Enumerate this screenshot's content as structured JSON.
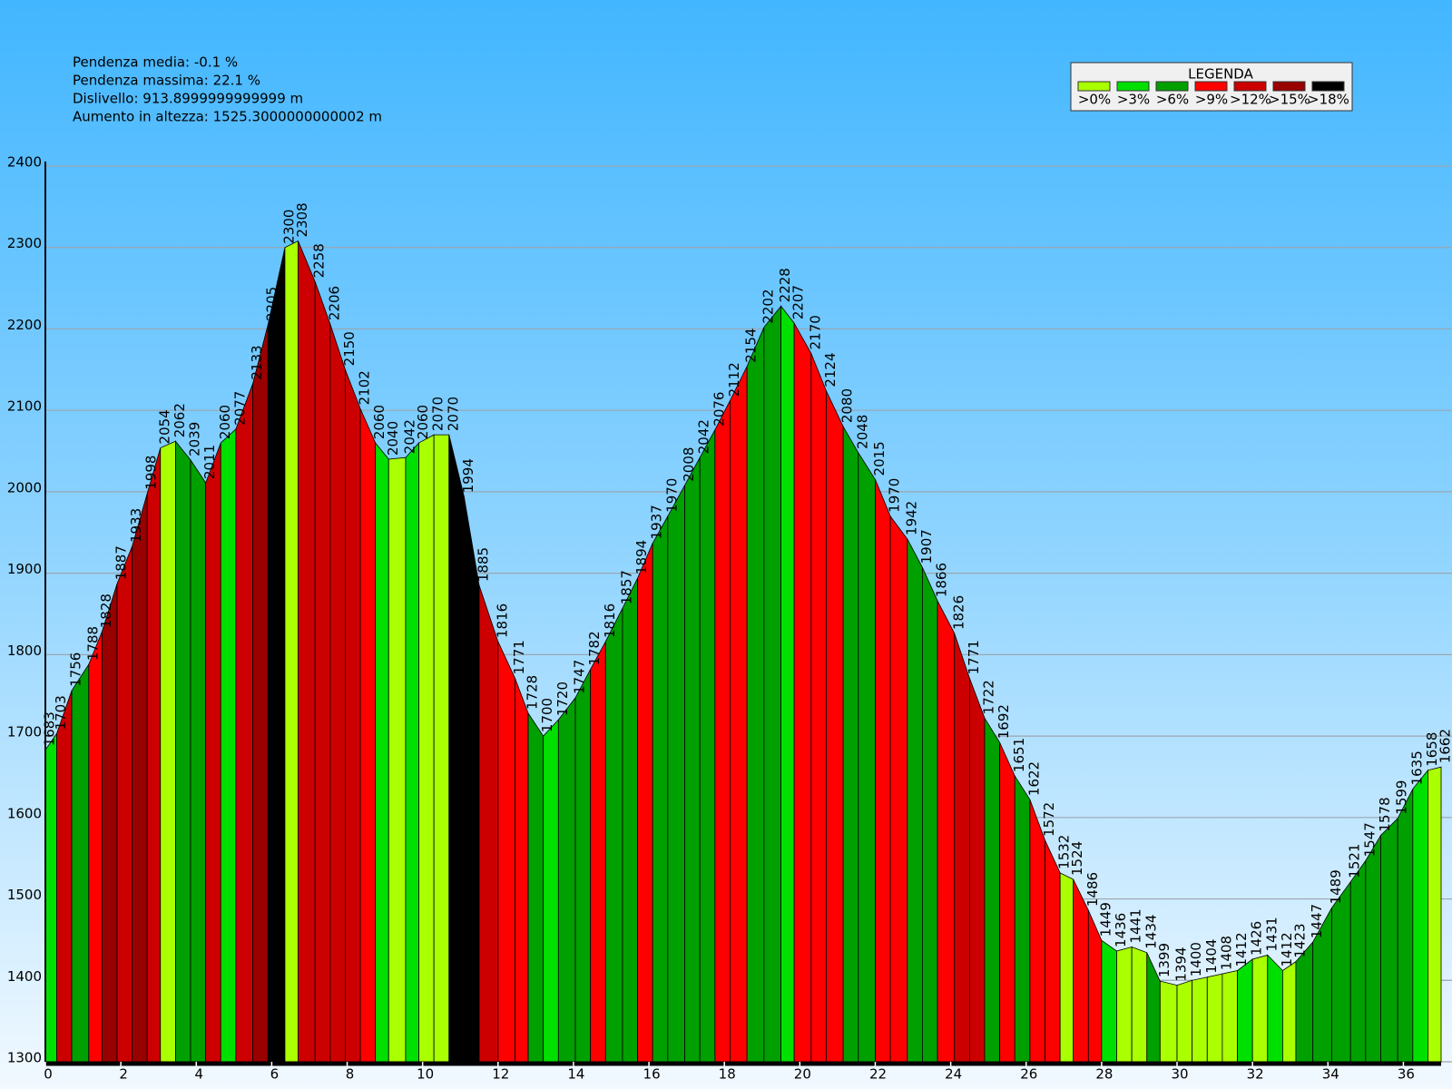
{
  "chart_data": {
    "type": "elevation-profile",
    "stats": [
      "Pendenza media: -0.1 %",
      "Pendenza massima: 22.1 %",
      "Dislivello: 913.8999999999999 m",
      "Aumento in altezza: 1525.3000000000002 m"
    ],
    "legend_title": "LEGENDA",
    "legend": [
      {
        "label": ">0%",
        "color": "#aaff00"
      },
      {
        "label": ">3%",
        "color": "#00e000"
      },
      {
        "label": ">6%",
        "color": "#00a000"
      },
      {
        "label": ">9%",
        "color": "#ff0000"
      },
      {
        "label": ">12%",
        "color": "#cc0000"
      },
      {
        "label": ">15%",
        "color": "#990000"
      },
      {
        "label": ">18%",
        "color": "#000000"
      }
    ],
    "x": [
      0,
      0.3,
      0.7,
      1.15,
      1.5,
      1.9,
      2.3,
      2.7,
      3.05,
      3.45,
      3.85,
      4.25,
      4.65,
      5.05,
      5.5,
      5.9,
      6.35,
      6.7,
      7.15,
      7.55,
      7.95,
      8.35,
      8.75,
      9.1,
      9.55,
      9.9,
      10.3,
      10.7,
      11.1,
      11.5,
      12.0,
      12.45,
      12.8,
      13.2,
      13.6,
      14.05,
      14.45,
      14.85,
      15.3,
      15.7,
      16.1,
      16.5,
      16.95,
      17.35,
      17.75,
      18.15,
      18.6,
      19.05,
      19.5,
      19.85,
      20.3,
      20.7,
      21.15,
      21.55,
      22.0,
      22.4,
      22.85,
      23.25,
      23.65,
      24.1,
      24.5,
      24.9,
      25.3,
      25.7,
      26.1,
      26.5,
      26.9,
      27.25,
      27.65,
      28.0,
      28.4,
      28.8,
      29.2,
      29.55,
      30.0,
      30.4,
      30.8,
      31.2,
      31.6,
      32.0,
      32.4,
      32.8,
      33.15,
      33.6,
      34.1,
      34.6,
      35.0,
      35.4,
      35.85,
      36.25,
      36.65,
      37.0
    ],
    "values": [
      1683,
      1703,
      1756,
      1788,
      1828,
      1887,
      1933,
      1998,
      2054,
      2062,
      2039,
      2011,
      2060,
      2077,
      2133,
      2205,
      2300,
      2308,
      2258,
      2206,
      2150,
      2102,
      2060,
      2040,
      2042,
      2060,
      2070,
      2070,
      1994,
      1885,
      1816,
      1771,
      1728,
      1700,
      1720,
      1747,
      1782,
      1816,
      1857,
      1894,
      1937,
      1970,
      2008,
      2042,
      2076,
      2112,
      2154,
      2202,
      2228,
      2207,
      2170,
      2124,
      2080,
      2048,
      2015,
      1970,
      1942,
      1907,
      1866,
      1826,
      1771,
      1722,
      1692,
      1651,
      1622,
      1572,
      1532,
      1524,
      1486,
      1449,
      1436,
      1441,
      1434,
      1399,
      1394,
      1400,
      1404,
      1408,
      1412,
      1426,
      1431,
      1412,
      1423,
      1447,
      1489,
      1521,
      1547,
      1578,
      1599,
      1635,
      1658,
      1662
    ],
    "segment_colors": [
      "#00e000",
      "#cc0000",
      "#00a000",
      "#ff0000",
      "#990000",
      "#cc0000",
      "#990000",
      "#cc0000",
      "#aaff00",
      "#00a000",
      "#00a000",
      "#cc0000",
      "#00e000",
      "#cc0000",
      "#990000",
      "#000000",
      "#aaff00",
      "#cc0000",
      "#cc0000",
      "#cc0000",
      "#cc0000",
      "#ff0000",
      "#00e000",
      "#aaff00",
      "#00e000",
      "#aaff00",
      "#aaff00",
      "#000000",
      "#000000",
      "#cc0000",
      "#ff0000",
      "#ff0000",
      "#00a000",
      "#00e000",
      "#00a000",
      "#00a000",
      "#ff0000",
      "#00a000",
      "#00a000",
      "#ff0000",
      "#00a000",
      "#00a000",
      "#00a000",
      "#00a000",
      "#ff0000",
      "#ff0000",
      "#00a000",
      "#00a000",
      "#00e000",
      "#ff0000",
      "#ff0000",
      "#ff0000",
      "#00a000",
      "#00a000",
      "#ff0000",
      "#ff0000",
      "#00a000",
      "#00a000",
      "#ff0000",
      "#cc0000",
      "#cc0000",
      "#00a000",
      "#ff0000",
      "#00a000",
      "#ff0000",
      "#ff0000",
      "#aaff00",
      "#ff0000",
      "#ff0000",
      "#00e000",
      "#aaff00",
      "#aaff00",
      "#00a000",
      "#aaff00",
      "#aaff00",
      "#aaff00",
      "#aaff00",
      "#aaff00",
      "#00e000",
      "#aaff00",
      "#00e000",
      "#aaff00",
      "#00a000",
      "#00a000",
      "#00a000",
      "#00a000",
      "#00a000",
      "#00a000",
      "#00a000",
      "#00e000",
      "#aaff00"
    ],
    "xlim": [
      0,
      37
    ],
    "xticks": [
      0,
      2,
      4,
      6,
      8,
      10,
      12,
      14,
      16,
      18,
      20,
      22,
      24,
      26,
      28,
      30,
      32,
      34,
      36
    ],
    "ylim": [
      1300,
      2400
    ],
    "yticks": [
      1300,
      1400,
      1500,
      1600,
      1700,
      1800,
      1900,
      2000,
      2100,
      2200,
      2300,
      2400
    ],
    "grid": true
  }
}
